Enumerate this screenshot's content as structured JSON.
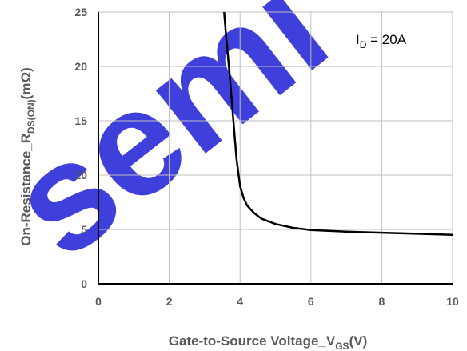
{
  "watermark": "semi",
  "chart_data": {
    "type": "line",
    "xlabel": {
      "main": "Gate-to-Source Voltage_V",
      "sub": "GS",
      "tail": "(V)"
    },
    "ylabel": {
      "main": "On-Resistance_R",
      "sub": "DS(ON)",
      "tail": "(mΩ)"
    },
    "annotation": {
      "main": "I",
      "sub": "D",
      "tail": " = 20A"
    },
    "xlim": [
      0,
      10
    ],
    "ylim": [
      0,
      25
    ],
    "x_ticks": [
      "0",
      "2",
      "4",
      "6",
      "8",
      "10"
    ],
    "y_ticks": [
      "0",
      "5",
      "10",
      "15",
      "20",
      "25"
    ],
    "grid": true,
    "colors": {
      "line": "#000000",
      "grid": "#bfbfbf",
      "axis": "#000000",
      "text": "#595959",
      "watermark": "#2b2bd8"
    },
    "series": [
      {
        "x": [
          3.55,
          3.6,
          3.7,
          3.8,
          3.9,
          4.0,
          4.1,
          4.2,
          4.4,
          4.6,
          5.0,
          5.5,
          6.0,
          7.0,
          8.0,
          9.0,
          10.0
        ],
        "y": [
          25.0,
          23.0,
          19.5,
          15.5,
          11.5,
          9.0,
          7.9,
          7.2,
          6.5,
          6.0,
          5.5,
          5.15,
          4.95,
          4.8,
          4.7,
          4.6,
          4.5
        ]
      }
    ]
  }
}
